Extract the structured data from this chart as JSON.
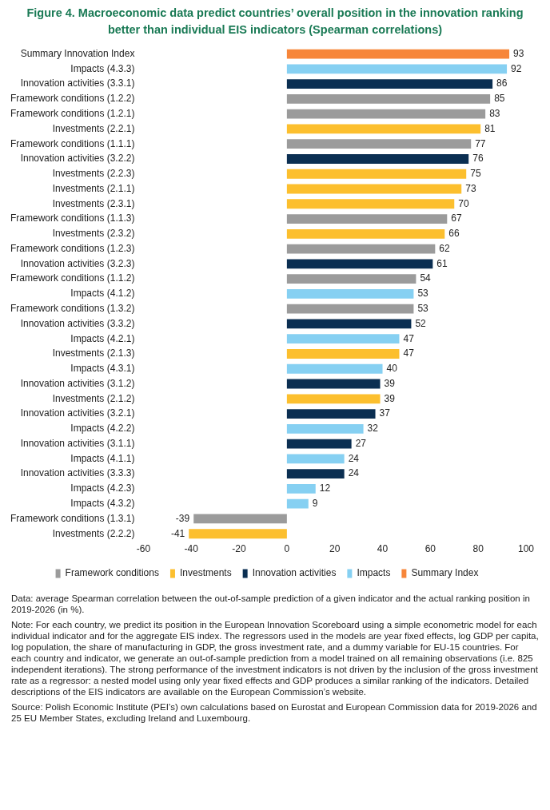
{
  "chart_data": {
    "type": "bar",
    "orientation": "horizontal",
    "title": "Figure 4.  Macroeconomic data predict countries’ overall position in the innovation ranking better than individual EIS indicators (Spearman correlations)",
    "categories": [
      "Summary Innovation Index",
      "Impacts (4.3.3)",
      "Innovation activities (3.3.1)",
      "Framework conditions (1.2.2)",
      "Framework conditions (1.2.1)",
      "Investments (2.2.1)",
      "Framework conditions (1.1.1)",
      "Innovation activities (3.2.2)",
      "Investments (2.2.3)",
      "Investments (2.1.1)",
      "Investments (2.3.1)",
      "Framework conditions (1.1.3)",
      "Investments (2.3.2)",
      "Framework conditions (1.2.3)",
      "Innovation activities (3.2.3)",
      "Framework conditions (1.1.2)",
      "Impacts (4.1.2)",
      "Framework conditions (1.3.2)",
      "Innovation activities (3.3.2)",
      "Impacts (4.2.1)",
      "Investments (2.1.3)",
      "Impacts (4.3.1)",
      "Innovation activities (3.1.2)",
      "Investments (2.1.2)",
      "Innovation activities (3.2.1)",
      "Impacts (4.2.2)",
      "Innovation activities (3.1.1)",
      "Impacts (4.1.1)",
      "Innovation activities (3.3.3)",
      "Impacts (4.2.3)",
      "Impacts (4.3.2)",
      "Framework conditions (1.3.1)",
      "Investments (2.2.2)"
    ],
    "series": [
      {
        "name": "Framework conditions",
        "color": "#9b9b9b",
        "values": [
          null,
          null,
          null,
          85,
          83,
          null,
          77,
          null,
          null,
          null,
          null,
          67,
          null,
          62,
          null,
          54,
          null,
          53,
          null,
          null,
          null,
          null,
          null,
          null,
          null,
          null,
          null,
          null,
          null,
          null,
          null,
          -39,
          null
        ]
      },
      {
        "name": "Investments",
        "color": "#fcbf2e",
        "values": [
          null,
          null,
          null,
          null,
          null,
          81,
          null,
          null,
          75,
          73,
          70,
          null,
          66,
          null,
          null,
          null,
          null,
          null,
          null,
          null,
          47,
          null,
          null,
          39,
          null,
          null,
          null,
          null,
          null,
          null,
          null,
          null,
          -41
        ]
      },
      {
        "name": "Innovation activities",
        "color": "#0b2f52",
        "values": [
          null,
          null,
          86,
          null,
          null,
          null,
          null,
          76,
          null,
          null,
          null,
          null,
          null,
          null,
          61,
          null,
          null,
          null,
          52,
          null,
          null,
          null,
          39,
          null,
          37,
          null,
          27,
          null,
          24,
          null,
          null,
          null,
          null
        ]
      },
      {
        "name": "Impacts",
        "color": "#86d0f2",
        "values": [
          null,
          92,
          null,
          null,
          null,
          null,
          null,
          null,
          null,
          null,
          null,
          null,
          null,
          null,
          null,
          null,
          53,
          null,
          null,
          47,
          null,
          40,
          null,
          null,
          null,
          32,
          null,
          24,
          null,
          12,
          9,
          null,
          null
        ]
      },
      {
        "name": "Summary Index",
        "color": "#f7863a",
        "values": [
          93,
          null,
          null,
          null,
          null,
          null,
          null,
          null,
          null,
          null,
          null,
          null,
          null,
          null,
          null,
          null,
          null,
          null,
          null,
          null,
          null,
          null,
          null,
          null,
          null,
          null,
          null,
          null,
          null,
          null,
          null,
          null,
          null
        ]
      }
    ],
    "xlim": [
      -60,
      100
    ],
    "xticks": [
      -60,
      -40,
      -20,
      0,
      20,
      40,
      60,
      80,
      100
    ],
    "grid": false,
    "legend": "bottom",
    "data_labels": true,
    "annotations": [
      "Data: average Spearman correlation between the out-of-sample prediction of a given indicator and the actual ranking position in 2019-2026 (in %).",
      "Note: For each country, we predict its position in the European Innovation Scoreboard using a simple econometric model for each individual indicator and for the aggregate EIS index. The regressors used in the models are year fixed effects, log GDP per capita, log population, the share of manufacturing in GDP, the gross investment rate, and a dummy variable for EU-15 countries. For each country and indicator, we generate an out-of-sample prediction from a model trained on all remaining observations (i.e. 825 independent iterations). The strong performance of the investment indicators is not driven by the inclusion of the gross investment rate as a regressor: a nested model using only year fixed effects and GDP produces a similar ranking of the indicators. Detailed descriptions of the EIS indicators are available on the European Commission’s website.",
      "Source: Polish Economic Institute (PEI’s) own calculations based on Eurostat and European Commission data for 2019-2026 and 25 EU Member States, excluding Ireland and Luxembourg."
    ]
  }
}
